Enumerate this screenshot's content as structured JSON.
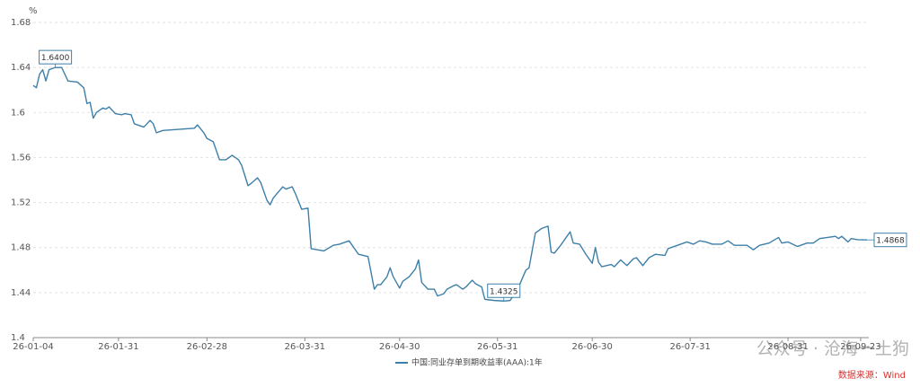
{
  "chart_data": {
    "type": "line",
    "unit": "%",
    "legend": "bottom",
    "grid": true,
    "source": "数据来源：Wind",
    "watermark": "公众号 · 沧海一土狗",
    "x": [
      "26-01-04",
      "26-01-05",
      "26-01-06",
      "26-01-07",
      "26-01-08",
      "26-01-09",
      "26-01-10",
      "26-01-11",
      "26-01-13",
      "26-01-15",
      "26-01-18",
      "26-01-20",
      "26-01-21",
      "26-01-22",
      "26-01-23",
      "26-01-24",
      "26-01-26",
      "26-01-27",
      "26-01-28",
      "26-01-30",
      "26-02-01",
      "26-02-02",
      "26-02-04",
      "26-02-05",
      "26-02-08",
      "26-02-10",
      "26-02-11",
      "26-02-12",
      "26-02-14",
      "26-02-24",
      "26-02-25",
      "26-02-27",
      "26-02-28",
      "26-03-02",
      "26-03-04",
      "26-03-06",
      "26-03-08",
      "26-03-10",
      "26-03-11",
      "26-03-13",
      "26-03-14",
      "26-03-16",
      "26-03-17",
      "26-03-19",
      "26-03-20",
      "26-03-21",
      "26-03-24",
      "26-03-25",
      "26-03-27",
      "26-03-28",
      "26-03-30",
      "26-04-01",
      "26-04-02",
      "26-04-06",
      "26-04-09",
      "26-04-11",
      "26-04-14",
      "26-04-17",
      "26-04-20",
      "26-04-22",
      "26-04-23",
      "26-04-24",
      "26-04-26",
      "26-04-27",
      "26-04-28",
      "26-04-30",
      "26-05-01",
      "26-05-03",
      "26-05-05",
      "26-05-06",
      "26-05-07",
      "26-05-09",
      "26-05-11",
      "26-05-12",
      "26-05-14",
      "26-05-15",
      "26-05-17",
      "26-05-18",
      "26-05-20",
      "26-05-21",
      "26-05-23",
      "26-05-24",
      "26-05-26",
      "26-05-27",
      "26-05-30",
      "26-06-02",
      "26-06-04",
      "26-06-06",
      "26-06-07",
      "26-06-09",
      "26-06-10",
      "26-06-12",
      "26-06-14",
      "26-06-16",
      "26-06-17",
      "26-06-18",
      "26-06-20",
      "26-06-23",
      "26-06-24",
      "26-06-26",
      "26-06-28",
      "26-06-30",
      "26-07-01",
      "26-07-02",
      "26-07-03",
      "26-07-06",
      "26-07-07",
      "26-07-09",
      "26-07-11",
      "26-07-13",
      "26-07-14",
      "26-07-16",
      "26-07-18",
      "26-07-20",
      "26-07-23",
      "26-07-24",
      "26-07-27",
      "26-07-29",
      "26-07-30",
      "26-08-01",
      "26-08-03",
      "26-08-05",
      "26-08-07",
      "26-08-10",
      "26-08-12",
      "26-08-14",
      "26-08-18",
      "26-08-20",
      "26-08-22",
      "26-08-25",
      "26-08-28",
      "26-08-29",
      "26-08-31",
      "26-09-03",
      "26-09-06",
      "26-09-08",
      "26-09-10",
      "26-09-15",
      "26-09-16",
      "26-09-17",
      "26-09-19",
      "26-09-20",
      "26-09-22",
      "26-09-25"
    ],
    "series": [
      {
        "name": "中国:同业存单到期收益率(AAA):1年",
        "color": "#3d7fa8",
        "values": [
          1.624,
          1.622,
          1.634,
          1.638,
          1.628,
          1.638,
          1.639,
          1.64,
          1.64,
          1.628,
          1.627,
          1.622,
          1.608,
          1.609,
          1.595,
          1.6,
          1.604,
          1.603,
          1.605,
          1.599,
          1.598,
          1.599,
          1.598,
          1.59,
          1.587,
          1.593,
          1.59,
          1.582,
          1.584,
          1.586,
          1.589,
          1.582,
          1.577,
          1.574,
          1.558,
          1.558,
          1.562,
          1.558,
          1.553,
          1.535,
          1.537,
          1.542,
          1.538,
          1.522,
          1.518,
          1.524,
          1.534,
          1.532,
          1.534,
          1.528,
          1.514,
          1.515,
          1.479,
          1.477,
          1.482,
          1.483,
          1.486,
          1.474,
          1.472,
          1.443,
          1.447,
          1.447,
          1.454,
          1.462,
          1.454,
          1.444,
          1.45,
          1.454,
          1.461,
          1.469,
          1.449,
          1.443,
          1.443,
          1.437,
          1.439,
          1.443,
          1.446,
          1.447,
          1.443,
          1.445,
          1.451,
          1.448,
          1.445,
          1.434,
          1.433,
          1.4325,
          1.433,
          1.441,
          1.447,
          1.46,
          1.462,
          1.493,
          1.497,
          1.499,
          1.476,
          1.475,
          1.482,
          1.494,
          1.484,
          1.483,
          1.474,
          1.466,
          1.48,
          1.467,
          1.463,
          1.465,
          1.463,
          1.469,
          1.464,
          1.47,
          1.471,
          1.464,
          1.471,
          1.474,
          1.473,
          1.479,
          1.482,
          1.484,
          1.485,
          1.483,
          1.486,
          1.485,
          1.483,
          1.483,
          1.486,
          1.482,
          1.482,
          1.478,
          1.482,
          1.484,
          1.489,
          1.484,
          1.485,
          1.481,
          1.484,
          1.484,
          1.488,
          1.49,
          1.488,
          1.49,
          1.485,
          1.488,
          1.487,
          1.4868
        ]
      }
    ],
    "annotations": [
      {
        "x": "26-01-11",
        "y": 1.64,
        "label": "1.6400"
      },
      {
        "x": "26-06-02",
        "y": 1.4325,
        "label": "1.4325"
      },
      {
        "x": "26-09-25",
        "y": 1.4868,
        "label": "1.4868"
      }
    ],
    "xlim": [
      "26-01-04",
      "26-09-25"
    ],
    "xticks": [
      "26-01-04",
      "26-01-31",
      "26-02-28",
      "26-03-31",
      "26-04-30",
      "26-05-31",
      "26-06-30",
      "26-07-31",
      "26-08-31",
      "26-09-23"
    ],
    "ylim": [
      1.4,
      1.68
    ],
    "yticks": [
      1.4,
      1.44,
      1.48,
      1.52,
      1.56,
      1.6,
      1.64,
      1.68
    ]
  }
}
